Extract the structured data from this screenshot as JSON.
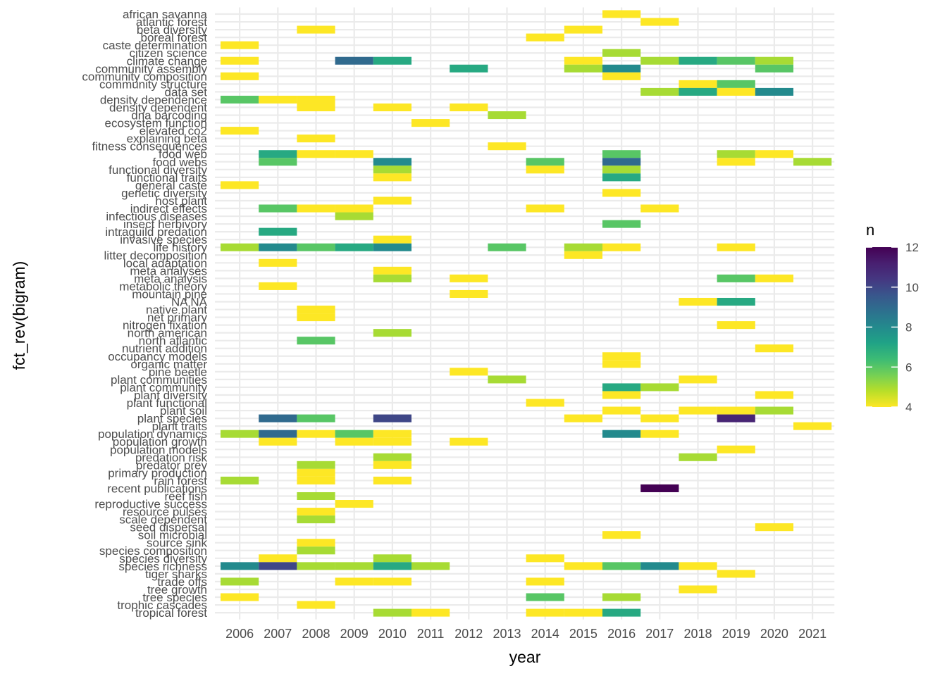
{
  "chart_data": {
    "type": "heatmap",
    "xlabel": "year",
    "ylabel": "fct_rev(bigram)",
    "x_categories": [
      "2006",
      "2007",
      "2008",
      "2009",
      "2010",
      "2011",
      "2012",
      "2013",
      "2014",
      "2015",
      "2016",
      "2017",
      "2018",
      "2019",
      "2020",
      "2021"
    ],
    "y_categories": [
      "african savanna",
      "atlantic forest",
      "beta diversity",
      "boreal forest",
      "caste determination",
      "citizen science",
      "climate change",
      "community assembly",
      "community composition",
      "community structure",
      "data set",
      "density dependence",
      "density dependent",
      "dna barcoding",
      "ecosystem function",
      "elevated co2",
      "explaining beta",
      "fitness consequences",
      "food web",
      "food webs",
      "functional diversity",
      "functional traits",
      "general caste",
      "genetic diversity",
      "host plant",
      "indirect effects",
      "infectious diseases",
      "insect herbivory",
      "intraguild predation",
      "invasive species",
      "life history",
      "litter decomposition",
      "local adaptation",
      "meta analyses",
      "meta analysis",
      "metabolic theory",
      "mountain pine",
      "NA NA",
      "native plant",
      "net primary",
      "nitrogen fixation",
      "north american",
      "north atlantic",
      "nutrient addition",
      "occupancy models",
      "organic matter",
      "pine beetle",
      "plant communities",
      "plant community",
      "plant diversity",
      "plant functional",
      "plant soil",
      "plant species",
      "plant traits",
      "population dynamics",
      "population growth",
      "population models",
      "predation risk",
      "predator prey",
      "primary production",
      "rain forest",
      "recent publications",
      "reef fish",
      "reproductive success",
      "resource pulses",
      "scale dependent",
      "seed dispersal",
      "soil microbial",
      "source sink",
      "species composition",
      "species diversity",
      "species richness",
      "tiger sharks",
      "trade offs",
      "tree growth",
      "tree species",
      "trophic cascades",
      "tropical forest"
    ],
    "color_scale": {
      "name": "n",
      "min": 4,
      "max": 12,
      "ticks": [
        4,
        6,
        8,
        10,
        12
      ],
      "palette": "viridis-reversed",
      "stops": [
        "#FDE725",
        "#B8DE29",
        "#74D055",
        "#3CBB75",
        "#20A386",
        "#238A8D",
        "#2D708E",
        "#39568C",
        "#453781",
        "#481F70",
        "#440154"
      ]
    },
    "cells": [
      [
        "african savanna",
        "2016",
        4
      ],
      [
        "atlantic forest",
        "2017",
        4
      ],
      [
        "beta diversity",
        "2008",
        4
      ],
      [
        "beta diversity",
        "2015",
        4
      ],
      [
        "boreal forest",
        "2014",
        4
      ],
      [
        "caste determination",
        "2006",
        4
      ],
      [
        "citizen science",
        "2016",
        5
      ],
      [
        "climate change",
        "2006",
        4
      ],
      [
        "climate change",
        "2009",
        9
      ],
      [
        "climate change",
        "2010",
        7
      ],
      [
        "climate change",
        "2015",
        4
      ],
      [
        "climate change",
        "2017",
        5
      ],
      [
        "climate change",
        "2018",
        7
      ],
      [
        "climate change",
        "2019",
        6
      ],
      [
        "climate change",
        "2020",
        5
      ],
      [
        "community assembly",
        "2012",
        7
      ],
      [
        "community assembly",
        "2015",
        5
      ],
      [
        "community assembly",
        "2016",
        8
      ],
      [
        "community assembly",
        "2020",
        6
      ],
      [
        "community composition",
        "2006",
        4
      ],
      [
        "community composition",
        "2016",
        4
      ],
      [
        "community structure",
        "2018",
        4
      ],
      [
        "community structure",
        "2019",
        6
      ],
      [
        "data set",
        "2017",
        5
      ],
      [
        "data set",
        "2018",
        7
      ],
      [
        "data set",
        "2019",
        4
      ],
      [
        "data set",
        "2020",
        8
      ],
      [
        "density dependence",
        "2006",
        6
      ],
      [
        "density dependence",
        "2007",
        4
      ],
      [
        "density dependence",
        "2008",
        4
      ],
      [
        "density dependent",
        "2008",
        4
      ],
      [
        "density dependent",
        "2010",
        4
      ],
      [
        "density dependent",
        "2012",
        4
      ],
      [
        "dna barcoding",
        "2013",
        5
      ],
      [
        "ecosystem function",
        "2011",
        4
      ],
      [
        "elevated co2",
        "2006",
        4
      ],
      [
        "explaining beta",
        "2008",
        4
      ],
      [
        "fitness consequences",
        "2013",
        4
      ],
      [
        "food web",
        "2007",
        7
      ],
      [
        "food web",
        "2008",
        4
      ],
      [
        "food web",
        "2009",
        4
      ],
      [
        "food web",
        "2016",
        6
      ],
      [
        "food web",
        "2019",
        5
      ],
      [
        "food web",
        "2020",
        4
      ],
      [
        "food webs",
        "2007",
        6
      ],
      [
        "food webs",
        "2010",
        8
      ],
      [
        "food webs",
        "2014",
        6
      ],
      [
        "food webs",
        "2016",
        9
      ],
      [
        "food webs",
        "2019",
        4
      ],
      [
        "food webs",
        "2021",
        5
      ],
      [
        "functional diversity",
        "2010",
        5
      ],
      [
        "functional diversity",
        "2014",
        4
      ],
      [
        "functional diversity",
        "2016",
        5
      ],
      [
        "functional traits",
        "2010",
        4
      ],
      [
        "functional traits",
        "2016",
        7
      ],
      [
        "general caste",
        "2006",
        4
      ],
      [
        "genetic diversity",
        "2016",
        4
      ],
      [
        "host plant",
        "2010",
        4
      ],
      [
        "indirect effects",
        "2007",
        6
      ],
      [
        "indirect effects",
        "2008",
        4
      ],
      [
        "indirect effects",
        "2009",
        4
      ],
      [
        "indirect effects",
        "2014",
        4
      ],
      [
        "indirect effects",
        "2017",
        4
      ],
      [
        "infectious diseases",
        "2009",
        5
      ],
      [
        "insect herbivory",
        "2016",
        6
      ],
      [
        "intraguild predation",
        "2007",
        7
      ],
      [
        "invasive species",
        "2010",
        4
      ],
      [
        "life history",
        "2006",
        5
      ],
      [
        "life history",
        "2007",
        8
      ],
      [
        "life history",
        "2008",
        6
      ],
      [
        "life history",
        "2009",
        7
      ],
      [
        "life history",
        "2010",
        8
      ],
      [
        "life history",
        "2013",
        6
      ],
      [
        "life history",
        "2015",
        5
      ],
      [
        "life history",
        "2016",
        4
      ],
      [
        "life history",
        "2019",
        4
      ],
      [
        "litter decomposition",
        "2015",
        4
      ],
      [
        "local adaptation",
        "2007",
        4
      ],
      [
        "meta analyses",
        "2010",
        4
      ],
      [
        "meta analysis",
        "2010",
        5
      ],
      [
        "meta analysis",
        "2012",
        4
      ],
      [
        "meta analysis",
        "2019",
        6
      ],
      [
        "meta analysis",
        "2020",
        4
      ],
      [
        "metabolic theory",
        "2007",
        4
      ],
      [
        "mountain pine",
        "2012",
        4
      ],
      [
        "NA NA",
        "2018",
        4
      ],
      [
        "NA NA",
        "2019",
        7
      ],
      [
        "native plant",
        "2008",
        4
      ],
      [
        "net primary",
        "2008",
        4
      ],
      [
        "nitrogen fixation",
        "2019",
        4
      ],
      [
        "north american",
        "2010",
        5
      ],
      [
        "north atlantic",
        "2008",
        6
      ],
      [
        "nutrient addition",
        "2020",
        4
      ],
      [
        "occupancy models",
        "2016",
        4
      ],
      [
        "organic matter",
        "2016",
        4
      ],
      [
        "pine beetle",
        "2012",
        4
      ],
      [
        "plant communities",
        "2013",
        5
      ],
      [
        "plant communities",
        "2018",
        4
      ],
      [
        "plant community",
        "2016",
        7
      ],
      [
        "plant community",
        "2017",
        5
      ],
      [
        "plant diversity",
        "2016",
        4
      ],
      [
        "plant diversity",
        "2020",
        4
      ],
      [
        "plant functional",
        "2014",
        4
      ],
      [
        "plant soil",
        "2016",
        4
      ],
      [
        "plant soil",
        "2018",
        4
      ],
      [
        "plant soil",
        "2019",
        4
      ],
      [
        "plant soil",
        "2020",
        5
      ],
      [
        "plant species",
        "2007",
        9
      ],
      [
        "plant species",
        "2008",
        6
      ],
      [
        "plant species",
        "2010",
        10
      ],
      [
        "plant species",
        "2015",
        4
      ],
      [
        "plant species",
        "2017",
        4
      ],
      [
        "plant species",
        "2019",
        11
      ],
      [
        "plant traits",
        "2021",
        4
      ],
      [
        "population dynamics",
        "2006",
        5
      ],
      [
        "population dynamics",
        "2007",
        9
      ],
      [
        "population dynamics",
        "2008",
        4
      ],
      [
        "population dynamics",
        "2009",
        6
      ],
      [
        "population dynamics",
        "2010",
        4
      ],
      [
        "population dynamics",
        "2016",
        8
      ],
      [
        "population dynamics",
        "2017",
        4
      ],
      [
        "population growth",
        "2007",
        4
      ],
      [
        "population growth",
        "2009",
        4
      ],
      [
        "population growth",
        "2010",
        4
      ],
      [
        "population growth",
        "2012",
        4
      ],
      [
        "population models",
        "2019",
        4
      ],
      [
        "predation risk",
        "2010",
        5
      ],
      [
        "predation risk",
        "2018",
        5
      ],
      [
        "predator prey",
        "2008",
        5
      ],
      [
        "predator prey",
        "2010",
        4
      ],
      [
        "primary production",
        "2008",
        4
      ],
      [
        "rain forest",
        "2006",
        5
      ],
      [
        "rain forest",
        "2008",
        4
      ],
      [
        "rain forest",
        "2010",
        4
      ],
      [
        "recent publications",
        "2017",
        12
      ],
      [
        "reef fish",
        "2008",
        5
      ],
      [
        "reproductive success",
        "2009",
        4
      ],
      [
        "resource pulses",
        "2008",
        4
      ],
      [
        "scale dependent",
        "2008",
        5
      ],
      [
        "seed dispersal",
        "2020",
        4
      ],
      [
        "soil microbial",
        "2016",
        4
      ],
      [
        "source sink",
        "2008",
        4
      ],
      [
        "species composition",
        "2008",
        5
      ],
      [
        "species diversity",
        "2007",
        4
      ],
      [
        "species diversity",
        "2010",
        5
      ],
      [
        "species diversity",
        "2014",
        4
      ],
      [
        "species richness",
        "2006",
        8
      ],
      [
        "species richness",
        "2007",
        10
      ],
      [
        "species richness",
        "2008",
        5
      ],
      [
        "species richness",
        "2009",
        5
      ],
      [
        "species richness",
        "2010",
        7
      ],
      [
        "species richness",
        "2011",
        5
      ],
      [
        "species richness",
        "2015",
        4
      ],
      [
        "species richness",
        "2016",
        6
      ],
      [
        "species richness",
        "2017",
        8
      ],
      [
        "species richness",
        "2018",
        4
      ],
      [
        "tiger sharks",
        "2019",
        4
      ],
      [
        "trade offs",
        "2006",
        5
      ],
      [
        "trade offs",
        "2009",
        4
      ],
      [
        "trade offs",
        "2010",
        4
      ],
      [
        "trade offs",
        "2014",
        4
      ],
      [
        "tree growth",
        "2018",
        4
      ],
      [
        "tree species",
        "2006",
        4
      ],
      [
        "tree species",
        "2014",
        6
      ],
      [
        "tree species",
        "2016",
        5
      ],
      [
        "trophic cascades",
        "2008",
        4
      ],
      [
        "tropical forest",
        "2010",
        5
      ],
      [
        "tropical forest",
        "2011",
        4
      ],
      [
        "tropical forest",
        "2014",
        4
      ],
      [
        "tropical forest",
        "2015",
        4
      ],
      [
        "tropical forest",
        "2016",
        7
      ]
    ]
  }
}
